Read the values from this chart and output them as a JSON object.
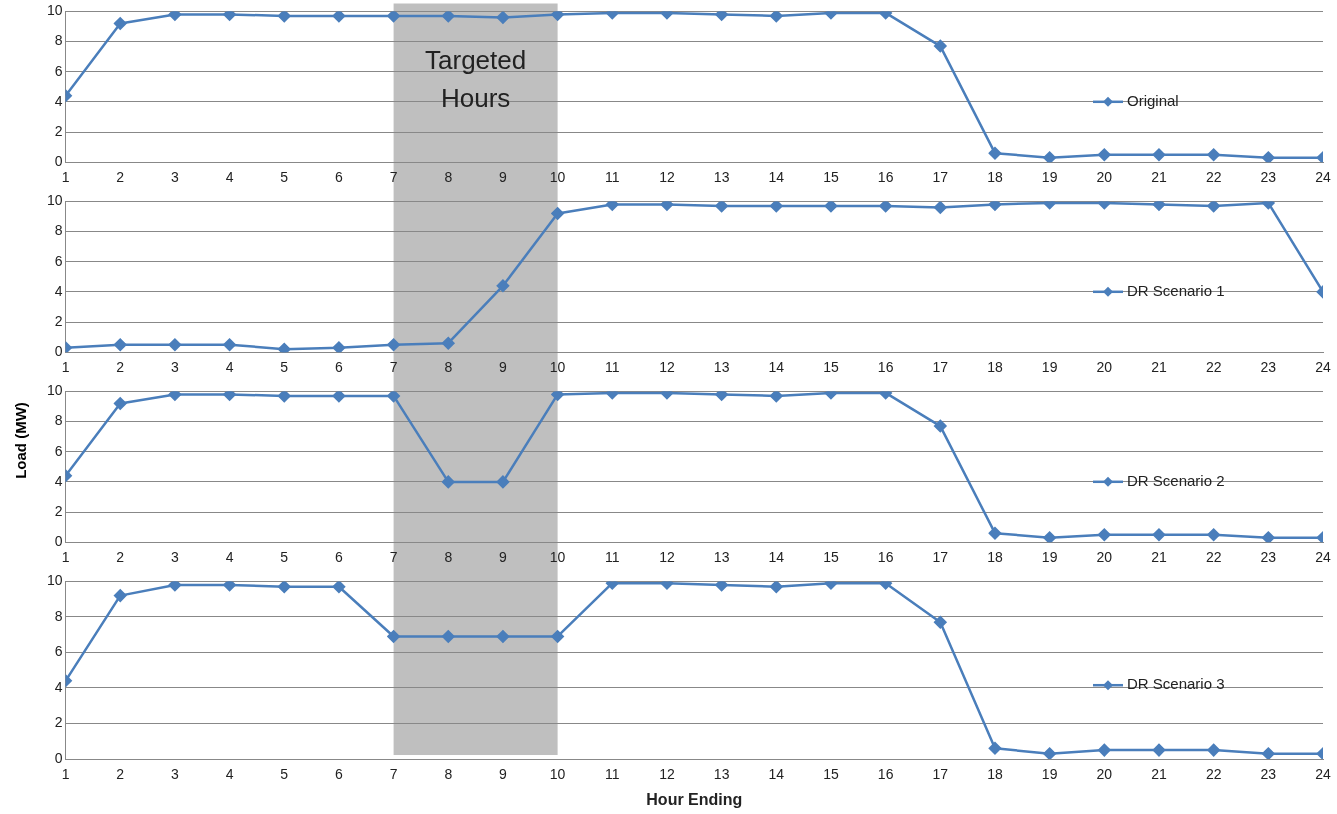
{
  "chart_data": [
    {
      "type": "line",
      "x": [
        1,
        2,
        3,
        4,
        5,
        6,
        7,
        8,
        9,
        10,
        11,
        12,
        13,
        14,
        15,
        16,
        17,
        18,
        19,
        20,
        21,
        22,
        23,
        24
      ],
      "xlim": [
        1,
        24
      ],
      "xticks": [
        1,
        2,
        3,
        4,
        5,
        6,
        7,
        8,
        9,
        10,
        11,
        12,
        13,
        14,
        15,
        16,
        17,
        18,
        19,
        20,
        21,
        22,
        23,
        24
      ],
      "ylim": [
        0,
        10
      ],
      "yticks": [
        0,
        2,
        4,
        6,
        8,
        10
      ],
      "grid": "y",
      "legend": "right",
      "marker": "diamond",
      "bands": [
        {
          "axis": "x",
          "from": 7,
          "to": 10,
          "label": "Targeted Hours",
          "color": "#bfbfbf"
        }
      ],
      "series": [
        {
          "name": "Original",
          "color": "#4a7ebb",
          "values": [
            4.4,
            9.2,
            9.8,
            9.8,
            9.7,
            9.7,
            9.7,
            9.7,
            9.6,
            9.8,
            9.9,
            9.9,
            9.8,
            9.7,
            9.9,
            9.9,
            7.7,
            0.6,
            0.3,
            0.5,
            0.5,
            0.5,
            0.3,
            0.3
          ]
        }
      ]
    },
    {
      "type": "line",
      "x": [
        1,
        2,
        3,
        4,
        5,
        6,
        7,
        8,
        9,
        10,
        11,
        12,
        13,
        14,
        15,
        16,
        17,
        18,
        19,
        20,
        21,
        22,
        23,
        24
      ],
      "xlim": [
        1,
        24
      ],
      "xticks": [
        1,
        2,
        3,
        4,
        5,
        6,
        7,
        8,
        9,
        10,
        11,
        12,
        13,
        14,
        15,
        16,
        17,
        18,
        19,
        20,
        21,
        22,
        23,
        24
      ],
      "ylim": [
        0,
        10
      ],
      "yticks": [
        0,
        2,
        4,
        6,
        8,
        10
      ],
      "grid": "y",
      "legend": "right",
      "marker": "diamond",
      "bands": [
        {
          "axis": "x",
          "from": 7,
          "to": 10,
          "color": "#bfbfbf"
        }
      ],
      "series": [
        {
          "name": "DR Scenario 1",
          "color": "#4a7ebb",
          "values": [
            0.3,
            0.5,
            0.5,
            0.5,
            0.2,
            0.3,
            0.5,
            0.6,
            4.4,
            9.2,
            9.8,
            9.8,
            9.7,
            9.7,
            9.7,
            9.7,
            9.6,
            9.8,
            9.9,
            9.9,
            9.8,
            9.7,
            9.9,
            4.0
          ]
        }
      ]
    },
    {
      "type": "line",
      "x": [
        1,
        2,
        3,
        4,
        5,
        6,
        7,
        8,
        9,
        10,
        11,
        12,
        13,
        14,
        15,
        16,
        17,
        18,
        19,
        20,
        21,
        22,
        23,
        24
      ],
      "xlim": [
        1,
        24
      ],
      "xticks": [
        1,
        2,
        3,
        4,
        5,
        6,
        7,
        8,
        9,
        10,
        11,
        12,
        13,
        14,
        15,
        16,
        17,
        18,
        19,
        20,
        21,
        22,
        23,
        24
      ],
      "ylim": [
        0,
        10
      ],
      "yticks": [
        0,
        2,
        4,
        6,
        8,
        10
      ],
      "grid": "y",
      "legend": "right",
      "marker": "diamond",
      "ylabel": "Load (MW)",
      "bands": [
        {
          "axis": "x",
          "from": 7,
          "to": 10,
          "color": "#bfbfbf"
        }
      ],
      "series": [
        {
          "name": "DR Scenario 2",
          "color": "#4a7ebb",
          "values": [
            4.4,
            9.2,
            9.8,
            9.8,
            9.7,
            9.7,
            9.7,
            4.0,
            4.0,
            9.8,
            9.9,
            9.9,
            9.8,
            9.7,
            9.9,
            9.9,
            7.7,
            0.6,
            0.3,
            0.5,
            0.5,
            0.5,
            0.3,
            0.3
          ]
        }
      ]
    },
    {
      "type": "line",
      "x": [
        1,
        2,
        3,
        4,
        5,
        6,
        7,
        8,
        9,
        10,
        11,
        12,
        13,
        14,
        15,
        16,
        17,
        18,
        19,
        20,
        21,
        22,
        23,
        24
      ],
      "xlim": [
        1,
        24
      ],
      "xticks": [
        1,
        2,
        3,
        4,
        5,
        6,
        7,
        8,
        9,
        10,
        11,
        12,
        13,
        14,
        15,
        16,
        17,
        18,
        19,
        20,
        21,
        22,
        23,
        24
      ],
      "ylim": [
        0,
        10
      ],
      "yticks": [
        0,
        2,
        4,
        6,
        8,
        10
      ],
      "grid": "y",
      "legend": "right",
      "marker": "diamond",
      "xlabel": "Hour Ending",
      "bands": [
        {
          "axis": "x",
          "from": 7,
          "to": 10,
          "color": "#bfbfbf"
        }
      ],
      "series": [
        {
          "name": "DR Scenario 3",
          "color": "#4a7ebb",
          "values": [
            4.4,
            9.2,
            9.8,
            9.8,
            9.7,
            9.7,
            6.9,
            6.9,
            6.9,
            6.9,
            9.9,
            9.9,
            9.8,
            9.7,
            9.9,
            9.9,
            7.7,
            0.6,
            0.3,
            0.5,
            0.5,
            0.5,
            0.3,
            0.3
          ]
        }
      ]
    }
  ]
}
